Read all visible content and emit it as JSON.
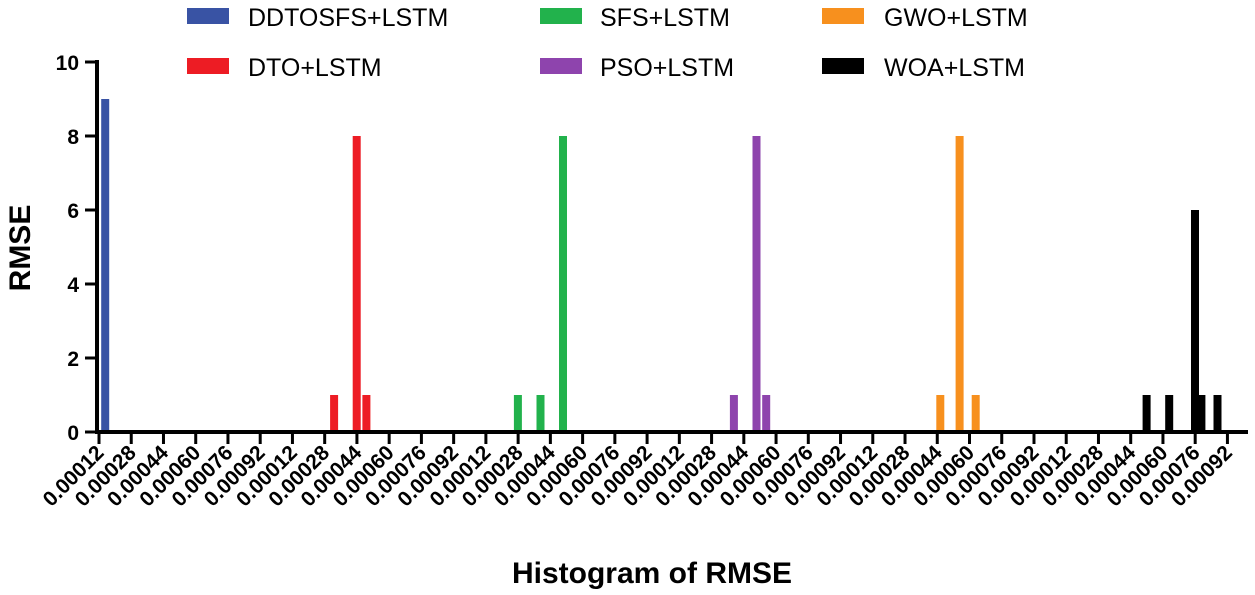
{
  "chart_data": {
    "type": "bar",
    "title": "",
    "xlabel": "Histogram of RMSE",
    "ylabel": "RMSE",
    "ylim": [
      0,
      10
    ],
    "yticks": [
      0,
      2,
      4,
      6,
      8,
      10
    ],
    "grid": false,
    "legend_position": "top",
    "categories": [
      "0.00012",
      "0.00028",
      "0.00044",
      "0.00060",
      "0.00076",
      "0.00092",
      "0.00012",
      "0.00028",
      "0.00044",
      "0.00060",
      "0.00076",
      "0.00092",
      "0.00012",
      "0.00028",
      "0.00044",
      "0.00060",
      "0.00076",
      "0.00092",
      "0.00012",
      "0.00028",
      "0.00044",
      "0.00060",
      "0.00076",
      "0.00092",
      "0.00012",
      "0.00028",
      "0.00044",
      "0.00060",
      "0.00076",
      "0.00092",
      "0.00012",
      "0.00028",
      "0.00044",
      "0.00060",
      "0.00076",
      "0.00092"
    ],
    "bin_count": 36,
    "series": [
      {
        "name": "DDTOSFS+LSTM",
        "color": "#3953a4",
        "bars": [
          {
            "bin": 0.1,
            "value": 9
          }
        ]
      },
      {
        "name": "DTO+LSTM",
        "color": "#ed1c24",
        "bars": [
          {
            "bin": 7.2,
            "value": 1
          },
          {
            "bin": 7.9,
            "value": 8
          },
          {
            "bin": 8.2,
            "value": 1
          }
        ]
      },
      {
        "name": "SFS+LSTM",
        "color": "#22b24c",
        "bars": [
          {
            "bin": 12.9,
            "value": 1
          },
          {
            "bin": 13.6,
            "value": 1
          },
          {
            "bin": 14.3,
            "value": 8
          }
        ]
      },
      {
        "name": "PSO+LSTM",
        "color": "#8e44ad",
        "bars": [
          {
            "bin": 19.6,
            "value": 1
          },
          {
            "bin": 20.3,
            "value": 8
          },
          {
            "bin": 20.6,
            "value": 1
          }
        ]
      },
      {
        "name": "GWO+LSTM",
        "color": "#f7901e",
        "bars": [
          {
            "bin": 26.0,
            "value": 1
          },
          {
            "bin": 26.6,
            "value": 8
          },
          {
            "bin": 27.1,
            "value": 1
          }
        ]
      },
      {
        "name": "WOA+LSTM",
        "color": "#000000",
        "bars": [
          {
            "bin": 32.4,
            "value": 1
          },
          {
            "bin": 33.1,
            "value": 1
          },
          {
            "bin": 33.9,
            "value": 6
          },
          {
            "bin": 34.1,
            "value": 1
          },
          {
            "bin": 34.6,
            "value": 1
          }
        ]
      }
    ]
  }
}
